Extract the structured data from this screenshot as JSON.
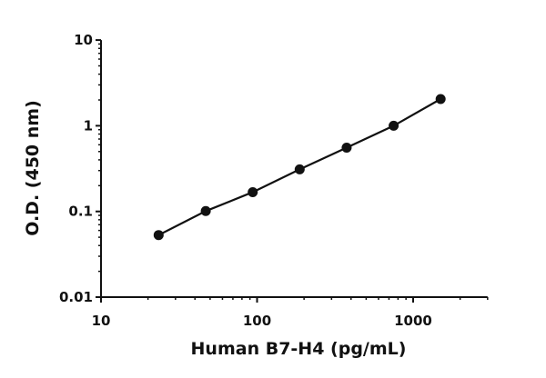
{
  "chart_data": {
    "type": "line",
    "title": "",
    "xlabel": "Human B7-H4 (pg/mL)",
    "ylabel": "O.D. (450 nm)",
    "xscale": "log",
    "yscale": "log",
    "xlim": [
      10,
      3000
    ],
    "ylim": [
      0.01,
      10
    ],
    "xticks": [
      "10",
      "100",
      "1000"
    ],
    "yticks": [
      "10",
      "1",
      "0.1",
      "0.01"
    ],
    "grid": false,
    "legend": null,
    "series": [
      {
        "name": "Human B7-H4",
        "x": [
          23.4,
          46.9,
          93.8,
          187.5,
          375,
          750,
          1500
        ],
        "y": [
          0.053,
          0.101,
          0.168,
          0.31,
          0.555,
          1.0,
          2.05
        ]
      }
    ]
  }
}
